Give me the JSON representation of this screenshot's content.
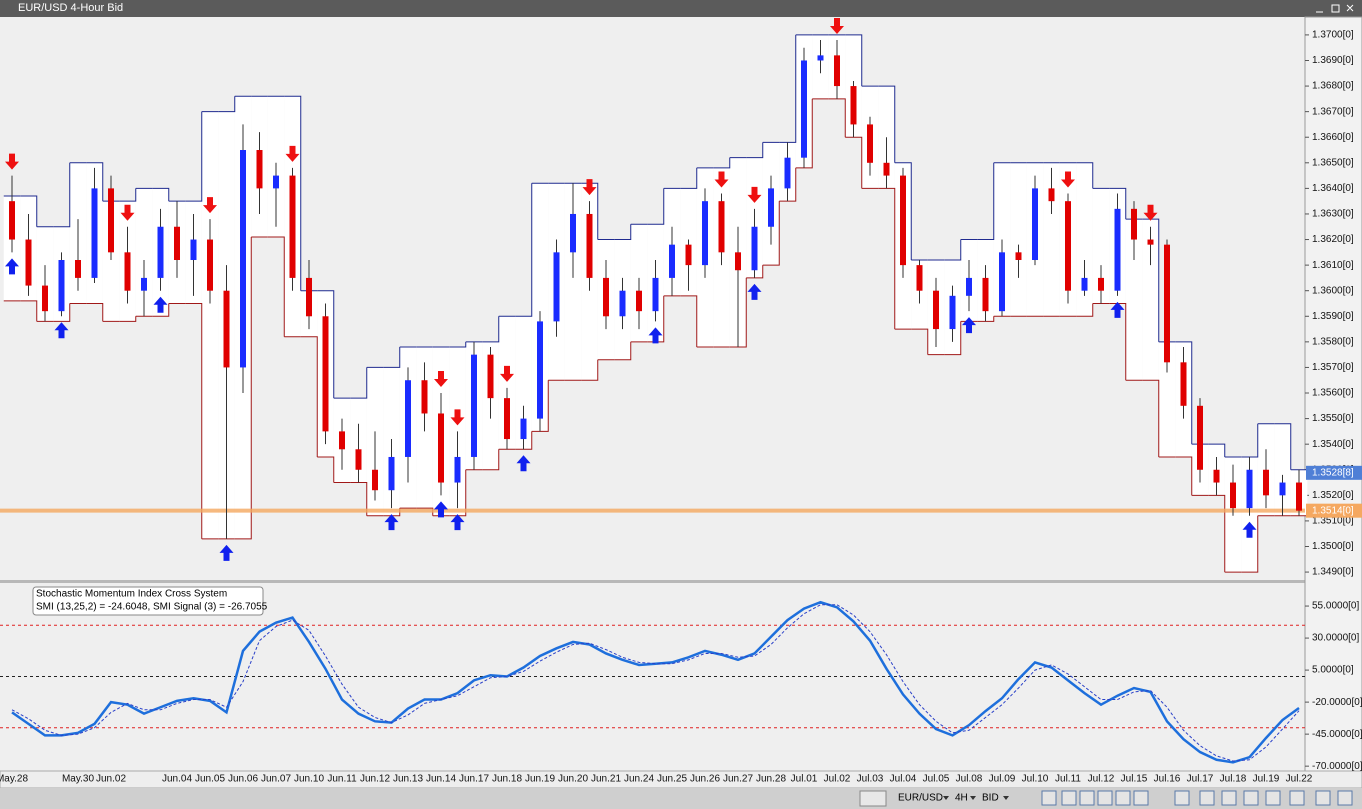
{
  "window_title": "EUR/USD 4-Hour Bid",
  "toolbar": {
    "symbol": "EUR/USD",
    "period": "4H",
    "side": "BID"
  },
  "chart_data": [
    {
      "type": "candlestick",
      "categories": [
        "May.28",
        null,
        null,
        null,
        "May.30",
        null,
        "Jun.02",
        null,
        null,
        null,
        "Jun.04",
        null,
        "Jun.05",
        null,
        "Jun.06",
        null,
        "Jun.07",
        null,
        "Jun.10",
        null,
        "Jun.11",
        null,
        "Jun.12",
        null,
        "Jun.13",
        null,
        "Jun.14",
        null,
        "Jun.17",
        null,
        "Jun.18",
        null,
        "Jun.19",
        null,
        "Jun.20",
        null,
        "Jun.21",
        null,
        "Jun.24",
        null,
        "Jun.25",
        null,
        "Jun.26",
        null,
        "Jun.27",
        null,
        "Jun.28",
        null,
        "Jul.01",
        null,
        "Jul.02",
        null,
        "Jul.03",
        null,
        "Jul.04",
        null,
        "Jul.05",
        null,
        "Jul.08",
        null,
        "Jul.09",
        null,
        "Jul.10",
        null,
        "Jul.11",
        null,
        "Jul.12",
        null,
        "Jul.15",
        null,
        "Jul.16",
        null,
        "Jul.17",
        null,
        "Jul.18",
        null,
        "Jul.19",
        null,
        "Jul.22"
      ],
      "open": [
        1.3635,
        1.362,
        1.3602,
        1.3592,
        1.3612,
        1.3605,
        1.364,
        1.3615,
        1.36,
        1.3605,
        1.3625,
        1.3612,
        1.362,
        1.36,
        1.357,
        1.3655,
        1.364,
        1.3645,
        1.3605,
        1.359,
        1.3545,
        1.3538,
        1.353,
        1.3522,
        1.3535,
        1.3565,
        1.3552,
        1.3525,
        1.3535,
        1.3575,
        1.3558,
        1.3542,
        1.355,
        1.3588,
        1.3615,
        1.363,
        1.3605,
        1.359,
        1.36,
        1.3592,
        1.3605,
        1.3618,
        1.361,
        1.3635,
        1.3615,
        1.3608,
        1.3625,
        1.364,
        1.3652,
        1.369,
        1.3692,
        1.368,
        1.3665,
        1.365,
        1.3645,
        1.361,
        1.36,
        1.3585,
        1.3598,
        1.3605,
        1.3592,
        1.3615,
        1.3612,
        1.364,
        1.3635,
        1.36,
        1.3605,
        1.36,
        1.3632,
        1.362,
        1.3618,
        1.3572,
        1.3555,
        1.353,
        1.3525,
        1.3515,
        1.353,
        1.352,
        1.3525
      ],
      "high": [
        1.3645,
        1.363,
        1.361,
        1.3615,
        1.3628,
        1.3648,
        1.3645,
        1.3625,
        1.3612,
        1.3632,
        1.3635,
        1.363,
        1.3628,
        1.361,
        1.3665,
        1.3662,
        1.365,
        1.3648,
        1.3612,
        1.3595,
        1.355,
        1.3548,
        1.3545,
        1.3542,
        1.357,
        1.3572,
        1.356,
        1.3545,
        1.358,
        1.3578,
        1.3562,
        1.3555,
        1.3592,
        1.362,
        1.3642,
        1.3635,
        1.3612,
        1.3605,
        1.3605,
        1.3612,
        1.3625,
        1.362,
        1.364,
        1.3638,
        1.3625,
        1.3632,
        1.3645,
        1.3658,
        1.3695,
        1.3698,
        1.3698,
        1.3682,
        1.3668,
        1.366,
        1.3648,
        1.3612,
        1.3605,
        1.3602,
        1.3612,
        1.361,
        1.362,
        1.3618,
        1.3645,
        1.3648,
        1.3638,
        1.3612,
        1.361,
        1.3638,
        1.3635,
        1.3625,
        1.362,
        1.3578,
        1.3558,
        1.3535,
        1.3532,
        1.3535,
        1.3538,
        1.3528,
        1.353
      ],
      "low": [
        1.3615,
        1.3598,
        1.3588,
        1.359,
        1.36,
        1.3603,
        1.3612,
        1.3595,
        1.359,
        1.36,
        1.3605,
        1.3598,
        1.3595,
        1.3503,
        1.356,
        1.363,
        1.3625,
        1.36,
        1.3585,
        1.354,
        1.353,
        1.3525,
        1.3518,
        1.3515,
        1.3525,
        1.3545,
        1.352,
        1.3515,
        1.353,
        1.355,
        1.3538,
        1.3538,
        1.3545,
        1.3582,
        1.3605,
        1.36,
        1.3585,
        1.3585,
        1.3585,
        1.3588,
        1.3598,
        1.36,
        1.3605,
        1.361,
        1.3578,
        1.3605,
        1.3618,
        1.3635,
        1.3648,
        1.3685,
        1.3675,
        1.366,
        1.3645,
        1.364,
        1.3605,
        1.3595,
        1.3578,
        1.358,
        1.3592,
        1.3588,
        1.359,
        1.3605,
        1.361,
        1.363,
        1.3595,
        1.3598,
        1.3595,
        1.3598,
        1.3612,
        1.361,
        1.3568,
        1.355,
        1.3525,
        1.352,
        1.3512,
        1.3512,
        1.3515,
        1.3512,
        1.3512
      ],
      "close": [
        1.362,
        1.3602,
        1.3592,
        1.3612,
        1.3605,
        1.364,
        1.3615,
        1.36,
        1.3605,
        1.3625,
        1.3612,
        1.362,
        1.36,
        1.357,
        1.3655,
        1.364,
        1.3645,
        1.3605,
        1.359,
        1.3545,
        1.3538,
        1.353,
        1.3522,
        1.3535,
        1.3565,
        1.3552,
        1.3525,
        1.3535,
        1.3575,
        1.3558,
        1.3542,
        1.355,
        1.3588,
        1.3615,
        1.363,
        1.3605,
        1.359,
        1.36,
        1.3592,
        1.3605,
        1.3618,
        1.361,
        1.3635,
        1.3615,
        1.3608,
        1.3625,
        1.364,
        1.3652,
        1.369,
        1.3692,
        1.368,
        1.3665,
        1.365,
        1.3645,
        1.361,
        1.36,
        1.3585,
        1.3598,
        1.3605,
        1.3592,
        1.3615,
        1.3612,
        1.364,
        1.3635,
        1.36,
        1.3605,
        1.36,
        1.3632,
        1.362,
        1.3618,
        1.3572,
        1.3555,
        1.353,
        1.3525,
        1.3515,
        1.353,
        1.352,
        1.3525,
        1.3514
      ],
      "up_color": "#1a2cff",
      "down_color": "#e00000",
      "channel_upper": [
        1.3637,
        1.3637,
        1.3625,
        1.3625,
        1.365,
        1.365,
        1.3635,
        1.3635,
        1.364,
        1.364,
        1.3635,
        1.3635,
        1.367,
        1.367,
        1.3676,
        1.3676,
        1.3676,
        1.3676,
        1.36,
        1.36,
        1.3558,
        1.3558,
        1.357,
        1.357,
        1.3578,
        1.3578,
        1.3578,
        1.3578,
        1.358,
        1.358,
        1.359,
        1.359,
        1.3642,
        1.3642,
        1.3642,
        1.3642,
        1.362,
        1.362,
        1.3626,
        1.3626,
        1.364,
        1.364,
        1.3648,
        1.3648,
        1.3652,
        1.3652,
        1.3658,
        1.3658,
        1.37,
        1.37,
        1.37,
        1.37,
        1.368,
        1.368,
        1.365,
        1.3612,
        1.3612,
        1.3612,
        1.362,
        1.362,
        1.365,
        1.365,
        1.365,
        1.365,
        1.365,
        1.365,
        1.364,
        1.364,
        1.3628,
        1.3628,
        1.358,
        1.358,
        1.354,
        1.354,
        1.3535,
        1.3535,
        1.3548,
        1.3548,
        1.353
      ],
      "channel_lower": [
        1.3596,
        1.3596,
        1.3588,
        1.3588,
        1.3595,
        1.3595,
        1.3588,
        1.3588,
        1.359,
        1.359,
        1.3595,
        1.3595,
        1.3503,
        1.3503,
        1.3503,
        1.3621,
        1.3621,
        1.3582,
        1.3582,
        1.3535,
        1.3525,
        1.3525,
        1.3512,
        1.3512,
        1.3515,
        1.3515,
        1.3512,
        1.3512,
        1.353,
        1.353,
        1.3538,
        1.3538,
        1.3545,
        1.3565,
        1.3565,
        1.3565,
        1.3573,
        1.3573,
        1.358,
        1.358,
        1.3598,
        1.3598,
        1.3578,
        1.3578,
        1.3578,
        1.3605,
        1.361,
        1.3635,
        1.3648,
        1.3675,
        1.3675,
        1.366,
        1.364,
        1.364,
        1.3585,
        1.3585,
        1.3575,
        1.3575,
        1.3588,
        1.3588,
        1.359,
        1.359,
        1.359,
        1.359,
        1.359,
        1.359,
        1.3595,
        1.3595,
        1.3565,
        1.3565,
        1.3535,
        1.3535,
        1.352,
        1.352,
        1.349,
        1.349,
        1.3512,
        1.3512,
        1.3512
      ],
      "upper_color": "#1f2a8f",
      "lower_color": "#a01818",
      "buy_signals": [
        0,
        3,
        9,
        13,
        23,
        26,
        27,
        31,
        39,
        45,
        58,
        67,
        75
      ],
      "sell_signals": [
        0,
        7,
        12,
        17,
        26,
        27,
        30,
        35,
        43,
        45,
        50,
        64,
        69
      ],
      "buy_color": "#1020ee",
      "sell_color": "#ee1010",
      "ylim": [
        1.34869,
        1.3707
      ],
      "yticks": [
        {
          "value": 1.349,
          "label": "1.3490[0]"
        },
        {
          "value": 1.35,
          "label": "1.3500[0]"
        },
        {
          "value": 1.351,
          "label": "1.3510[0]"
        },
        {
          "value": 1.352,
          "label": "1.3520[0]"
        },
        {
          "value": 1.353,
          "label": "1.3530[0]"
        },
        {
          "value": 1.354,
          "label": "1.3540[0]"
        },
        {
          "value": 1.355,
          "label": "1.3550[0]"
        },
        {
          "value": 1.356,
          "label": "1.3560[0]"
        },
        {
          "value": 1.357,
          "label": "1.3570[0]"
        },
        {
          "value": 1.358,
          "label": "1.3580[0]"
        },
        {
          "value": 1.359,
          "label": "1.3590[0]"
        },
        {
          "value": 1.36,
          "label": "1.3600[0]"
        },
        {
          "value": 1.361,
          "label": "1.3610[0]"
        },
        {
          "value": 1.362,
          "label": "1.3620[0]"
        },
        {
          "value": 1.363,
          "label": "1.3630[0]"
        },
        {
          "value": 1.364,
          "label": "1.3640[0]"
        },
        {
          "value": 1.365,
          "label": "1.3650[0]"
        },
        {
          "value": 1.366,
          "label": "1.3660[0]"
        },
        {
          "value": 1.367,
          "label": "1.3670[0]"
        },
        {
          "value": 1.368,
          "label": "1.3680[0]"
        },
        {
          "value": 1.369,
          "label": "1.3690[0]"
        },
        {
          "value": 1.37,
          "label": "1.3700[0]"
        }
      ],
      "ask_marker": {
        "value": 1.35288,
        "label": "1.3528[8]",
        "color": "#4f7fd6"
      },
      "bid_marker": {
        "value": 1.3514,
        "label": "1.3514[0]",
        "color": "#f5a860"
      }
    },
    {
      "type": "line",
      "title": "Stochastic Momentum Index Cross System",
      "subtitle": "SMI (13,25,2) = -24.6048, SMI Signal (3) = -26.7055",
      "series": [
        {
          "name": "SMI (13,25,2)",
          "color": "#1e6fdc",
          "values": [
            -28,
            -37,
            -46,
            -46,
            -44,
            -37,
            -20,
            -22,
            -29,
            -24,
            -19,
            -17,
            -19,
            -28,
            20,
            35,
            42,
            46,
            27,
            6,
            -18,
            -29,
            -35,
            -36,
            -25,
            -18,
            -18,
            -13,
            -3,
            1,
            0,
            7,
            16,
            22,
            27,
            25,
            18,
            13,
            9,
            10,
            11,
            15,
            20,
            17,
            13,
            18,
            31,
            44,
            53,
            58,
            54,
            43,
            28,
            6,
            -14,
            -29,
            -41,
            -46,
            -38,
            -27,
            -17,
            -2,
            11,
            7,
            -3,
            -13,
            -22,
            -15,
            -9,
            -12,
            -35,
            -49,
            -59,
            -65,
            -67,
            -63,
            -48,
            -34,
            -24.6048
          ]
        },
        {
          "name": "SMI Signal (3)",
          "color": "#2a40c8",
          "dashed": true,
          "values": [
            -26,
            -33,
            -42,
            -46,
            -45,
            -40,
            -28,
            -21,
            -26,
            -26,
            -21,
            -18,
            -18,
            -24,
            -4,
            28,
            39,
            44,
            36,
            16,
            -6,
            -24,
            -32,
            -36,
            -30,
            -21,
            -18,
            -15,
            -8,
            -1,
            0,
            4,
            12,
            19,
            25,
            26,
            21,
            15,
            11,
            10,
            10,
            13,
            18,
            18,
            15,
            16,
            25,
            38,
            49,
            56,
            56,
            48,
            35,
            17,
            -4,
            -22,
            -35,
            -44,
            -42,
            -32,
            -22,
            -9,
            5,
            9,
            2,
            -8,
            -18,
            -18,
            -12,
            -11,
            -24,
            -42,
            -54,
            -62,
            -66,
            -65,
            -55,
            -41,
            -26.7055
          ]
        }
      ],
      "levels": [
        40,
        0,
        -40
      ],
      "level_colors": [
        "#e02020",
        "#222222",
        "#e02020"
      ],
      "ylim": [
        -73,
        73
      ],
      "yticks": [
        {
          "value": 55,
          "label": "55.0000[0]"
        },
        {
          "value": 30,
          "label": "30.0000[0]"
        },
        {
          "value": 5,
          "label": "5.0000[0]"
        },
        {
          "value": -20,
          "label": "-20.0000[0]"
        },
        {
          "value": -45,
          "label": "-45.0000[0]"
        },
        {
          "value": -70,
          "label": "-70.0000[0]"
        }
      ]
    }
  ]
}
